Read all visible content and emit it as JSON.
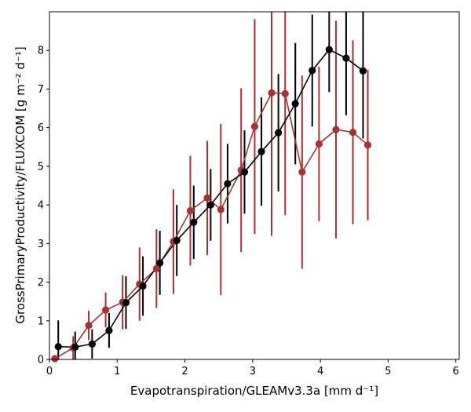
{
  "chart_data": {
    "type": "scatter",
    "xlabel": "Evapotranspiration/GLEAMv3.3a [mm d⁻¹]",
    "ylabel": "GrossPrimaryProductivity/FLUXCOM [g m⁻² d⁻¹]",
    "xlim": [
      0,
      6.05
    ],
    "ylim": [
      0,
      9.0
    ],
    "x_ticks": [
      0,
      1,
      2,
      3,
      4,
      5,
      6
    ],
    "y_ticks": [
      0,
      1,
      2,
      3,
      4,
      5,
      6,
      7,
      8
    ],
    "grid": false,
    "legend": "none",
    "series": [
      {
        "color": "#a83232",
        "x": [
          0.08,
          0.35,
          0.58,
          0.83,
          1.08,
          1.33,
          1.58,
          1.83,
          2.08,
          2.33,
          2.53,
          2.83,
          3.03,
          3.28,
          3.48,
          3.73,
          3.98,
          4.23,
          4.48,
          4.7
        ],
        "y": [
          0.02,
          0.3,
          0.88,
          1.28,
          1.48,
          1.95,
          2.35,
          3.05,
          3.85,
          4.18,
          3.88,
          4.9,
          6.03,
          6.9,
          6.88,
          4.85,
          5.58,
          5.95,
          5.88,
          5.55
        ],
        "yerr": [
          0.05,
          0.3,
          0.38,
          0.45,
          0.7,
          0.95,
          1.02,
          1.35,
          1.42,
          1.48,
          2.22,
          2.12,
          2.78,
          3.7,
          3.15,
          2.5,
          2.0,
          2.82,
          2.38,
          1.95
        ]
      },
      {
        "color": "#000000",
        "x": [
          0.13,
          0.38,
          0.63,
          0.88,
          1.13,
          1.38,
          1.63,
          1.88,
          2.13,
          2.38,
          2.63,
          2.88,
          3.13,
          3.38,
          3.63,
          3.88,
          4.13,
          4.38,
          4.63
        ],
        "y": [
          0.33,
          0.32,
          0.4,
          0.75,
          1.47,
          1.9,
          2.5,
          3.08,
          3.55,
          4.0,
          4.55,
          4.85,
          5.38,
          5.87,
          6.62,
          7.48,
          8.02,
          7.8,
          7.47
        ],
        "yerr": [
          0.68,
          0.4,
          0.38,
          0.45,
          0.68,
          0.77,
          0.83,
          0.92,
          0.95,
          0.93,
          1.03,
          1.08,
          1.4,
          1.52,
          1.57,
          1.45,
          1.1,
          1.48,
          1.75
        ]
      }
    ]
  }
}
